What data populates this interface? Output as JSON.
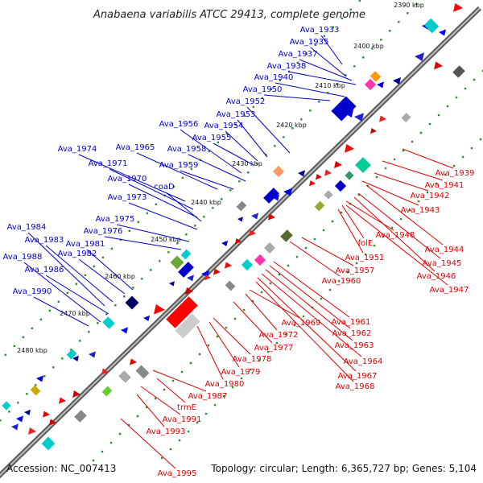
{
  "title": "Anabaena variabilis ATCC 29413, complete genome",
  "accession": "Accession: NC_007413",
  "summary": "Topology: circular; Length: 6,365,727 bp; Genes: 5,104",
  "colors": {
    "upper_strand": "#0000cc",
    "lower_strand": "#dd0000",
    "backbone": "#777777",
    "tick_dots": "#2e8b2e"
  },
  "ticks": [
    "2390 kbp",
    "2400 kbp",
    "2410 kbp",
    "2420 kbp",
    "2430 kbp",
    "2440 kbp",
    "2450 kbp",
    "2460 kbp",
    "2470 kbp",
    "2480 kbp"
  ],
  "upper_genes": [
    "Ava_1933",
    "Ava_1935",
    "Ava_1937",
    "Ava_1938",
    "Ava_1940",
    "Ava_1950",
    "Ava_1952",
    "Ava_1953",
    "Ava_1954",
    "Ava_1955",
    "Ava_1956",
    "Ava_1958",
    "Ava_1959",
    "Ava_1965",
    "Ava_1974",
    "Ava_1971",
    "Ava_1970",
    "coaD",
    "Ava_1973",
    "Ava_1975",
    "Ava_1976",
    "Ava_1981",
    "Ava_1982",
    "Ava_1983",
    "Ava_1984",
    "Ava_1986",
    "Ava_1988",
    "Ava_1990"
  ],
  "lower_genes": [
    "Ava_1939",
    "Ava_1941",
    "Ava_1942",
    "Ava_1943",
    "Ava_1944",
    "Ava_1945",
    "Ava_1946",
    "Ava_1947",
    "Ava_1948",
    "folE",
    "Ava_1951",
    "Ava_1957",
    "Ava_1960",
    "Ava_1961",
    "Ava_1962",
    "Ava_1963",
    "Ava_1964",
    "Ava_1967",
    "Ava_1968",
    "Ava_1969",
    "Ava_1972",
    "Ava_1977",
    "Ava_1978",
    "Ava_1979",
    "Ava_1980",
    "Ava_1987",
    "trmE",
    "Ava_1991",
    "Ava_1993",
    "Ava_1995"
  ]
}
